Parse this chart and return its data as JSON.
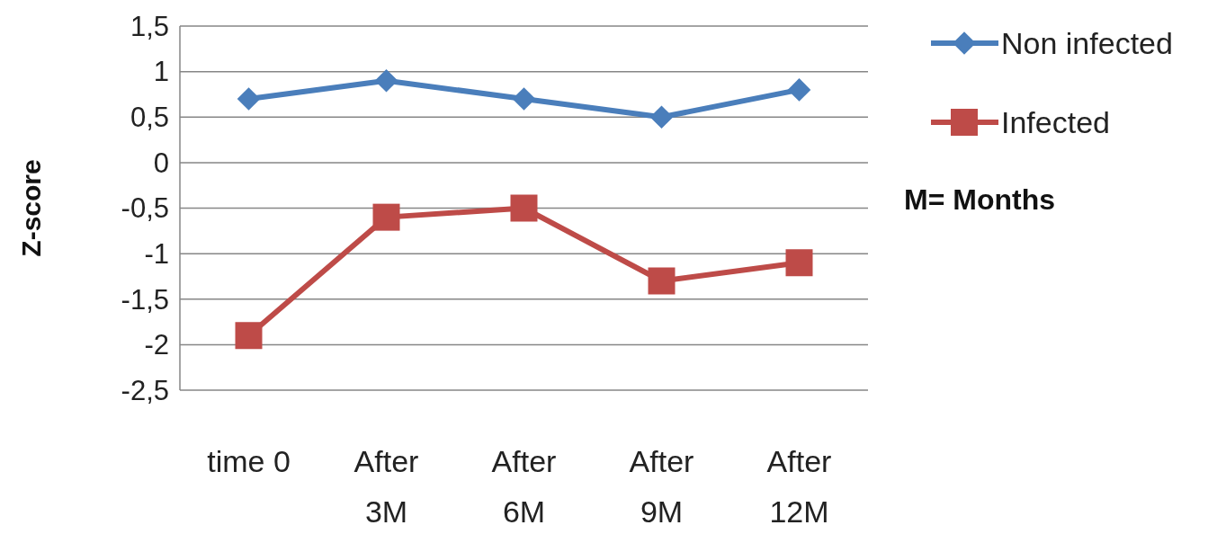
{
  "chart_data": {
    "type": "line",
    "ylabel": "Z-score",
    "categories": [
      "time 0",
      "After 3M",
      "After 6M",
      "After 9M",
      "After 12M"
    ],
    "series": [
      {
        "name": "Non infected",
        "color": "#4a7ebb",
        "marker": "diamond",
        "values": [
          0.7,
          0.9,
          0.7,
          0.5,
          0.8
        ]
      },
      {
        "name": "Infected",
        "color": "#be4b48",
        "marker": "square",
        "values": [
          -1.9,
          -0.6,
          -0.5,
          -1.3,
          -1.1
        ]
      }
    ],
    "ylim": [
      -2.5,
      1.5
    ],
    "yticks": [
      {
        "value": -2.5,
        "label": "-2,5"
      },
      -2,
      {
        "value": -1.5,
        "label": "-1,5"
      },
      -1,
      {
        "value": -0.5,
        "label": "-0,5"
      },
      0,
      {
        "value": 0.5,
        "label": "0,5"
      },
      1,
      {
        "value": 1.5,
        "label": "1,5"
      }
    ],
    "grid": "y",
    "legend": "right",
    "line_style": "solid",
    "annotations": [
      "M= Months"
    ]
  }
}
